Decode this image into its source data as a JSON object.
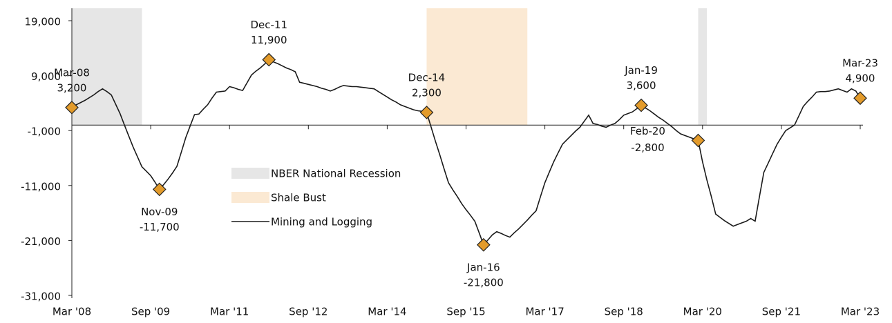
{
  "chart_data": {
    "type": "line",
    "categories": [
      "Mar '08",
      null,
      null,
      null,
      null,
      null,
      null,
      null,
      null,
      null,
      null,
      null,
      null,
      null,
      null,
      null,
      null,
      null,
      "Sep '09",
      null,
      null,
      null,
      null,
      null,
      null,
      null,
      null,
      null,
      null,
      null,
      null,
      null,
      null,
      null,
      null,
      null,
      "Mar '11",
      null,
      null,
      null,
      null,
      null,
      null,
      null,
      null,
      null,
      null,
      null,
      null,
      null,
      null,
      null,
      null,
      null,
      "Sep '12",
      null,
      null,
      null,
      null,
      null,
      null,
      null,
      null,
      null,
      null,
      null,
      null,
      null,
      null,
      null,
      null,
      null,
      "Mar '14",
      null,
      null,
      null,
      null,
      null,
      null,
      null,
      null,
      null,
      null,
      null,
      null,
      null,
      null,
      null,
      null,
      null,
      "Sep '15",
      null,
      null,
      null,
      null,
      null,
      null,
      null,
      null,
      null,
      null,
      null,
      null,
      null,
      null,
      null,
      null,
      null,
      "Mar '17",
      null,
      null,
      null,
      null,
      null,
      null,
      null,
      null,
      null,
      null,
      null,
      null,
      null,
      null,
      null,
      null,
      null,
      "Sep '18",
      null,
      null,
      null,
      null,
      null,
      null,
      null,
      null,
      null,
      null,
      null,
      null,
      null,
      null,
      null,
      null,
      null,
      "Mar '20",
      null,
      null,
      null,
      null,
      null,
      null,
      null,
      null,
      null,
      null,
      null,
      null,
      null,
      null,
      null,
      null,
      null,
      "Sep '21",
      null,
      null,
      null,
      null,
      null,
      null,
      null,
      null,
      null,
      null,
      null,
      null,
      null,
      null,
      null,
      null,
      null,
      "Mar '23"
    ],
    "series": [
      {
        "name": "Mining and Logging",
        "color": "#1a1a1a",
        "values": [
          3200,
          3700,
          4100,
          4500,
          5000,
          5500,
          6100,
          6600,
          6100,
          5500,
          3800,
          2100,
          0,
          -2000,
          -4000,
          -5800,
          -7600,
          -8400,
          -9200,
          -10400,
          -11700,
          -10800,
          -9800,
          -8700,
          -7500,
          -4900,
          -2300,
          -200,
          1900,
          2000,
          2900,
          3700,
          4900,
          6000,
          6100,
          6200,
          7000,
          6800,
          6500,
          6300,
          7700,
          9100,
          9800,
          10400,
          11100,
          11900,
          11500,
          11200,
          10800,
          10400,
          10100,
          9700,
          7800,
          7600,
          7400,
          7200,
          7000,
          6700,
          6500,
          6200,
          6500,
          6900,
          7200,
          7100,
          7000,
          7000,
          6900,
          6800,
          6700,
          6600,
          6100,
          5600,
          5100,
          4600,
          4200,
          3700,
          3400,
          3100,
          2800,
          2600,
          2500,
          2300,
          -300,
          -2900,
          -5400,
          -8000,
          -10500,
          -11800,
          -13000,
          -14300,
          -15400,
          -16400,
          -17500,
          -19600,
          -21800,
          -20900,
          -20000,
          -19400,
          -19700,
          -20100,
          -20400,
          -19600,
          -18900,
          -18100,
          -17300,
          -16400,
          -15600,
          -13000,
          -10500,
          -8600,
          -6700,
          -5100,
          -3500,
          -2700,
          -1900,
          -1100,
          -400,
          700,
          1800,
          300,
          100,
          -200,
          -400,
          0,
          300,
          1000,
          1800,
          2100,
          2400,
          3000,
          3600,
          3100,
          2600,
          2000,
          1400,
          900,
          300,
          -300,
          -1000,
          -1600,
          -1900,
          -2200,
          -2500,
          -2800,
          -6700,
          -10000,
          -13000,
          -16200,
          -16800,
          -17400,
          -17900,
          -18400,
          -18100,
          -17800,
          -17500,
          -17000,
          -17500,
          -13000,
          -8600,
          -6900,
          -5200,
          -3500,
          -2200,
          -1000,
          -500,
          0,
          1700,
          3400,
          4300,
          5100,
          6000,
          6100,
          6100,
          6200,
          6400,
          6600,
          6300,
          6000,
          6600,
          6200,
          4900
        ]
      }
    ],
    "shading": [
      {
        "name": "NBER National Recession",
        "color": "#e6e6e6",
        "spans": [
          [
            0,
            16
          ],
          [
            143,
            145
          ]
        ]
      },
      {
        "name": "Shale Bust",
        "color": "#fbe9d3",
        "spans": [
          [
            81,
            104
          ]
        ]
      }
    ],
    "annotations": [
      {
        "index": 0,
        "label": "Mar-08",
        "value": 3200,
        "value_label": "3,200",
        "position": "above"
      },
      {
        "index": 20,
        "label": "Nov-09",
        "value": -11700,
        "value_label": "-11,700",
        "position": "below"
      },
      {
        "index": 45,
        "label": "Dec-11",
        "value": 11900,
        "value_label": "11,900",
        "position": "above"
      },
      {
        "index": 81,
        "label": "Dec-14",
        "value": 2300,
        "value_label": "2,300",
        "position": "above"
      },
      {
        "index": 94,
        "label": "Jan-16",
        "value": -21800,
        "value_label": "-21,800",
        "position": "below"
      },
      {
        "index": 130,
        "label": "Jan-19",
        "value": 3600,
        "value_label": "3,600",
        "position": "above"
      },
      {
        "index": 143,
        "label": "Feb-20",
        "value": -2800,
        "value_label": "-2,800",
        "position": "left"
      },
      {
        "index": 180,
        "label": "Mar-23",
        "value": 4900,
        "value_label": "4,900",
        "position": "above"
      }
    ],
    "marker_color": "#e39b2b",
    "ylim": [
      -31000,
      19000
    ],
    "yticks": [
      {
        "value": 19000,
        "label": "19,000"
      },
      {
        "value": 9000,
        "label": "9,000"
      },
      {
        "value": -1000,
        "label": "-1,000"
      },
      {
        "value": -11000,
        "label": "-11,000"
      },
      {
        "value": -21000,
        "label": "-21,000"
      },
      {
        "value": -31000,
        "label": "-31,000"
      }
    ],
    "grid": false
  }
}
